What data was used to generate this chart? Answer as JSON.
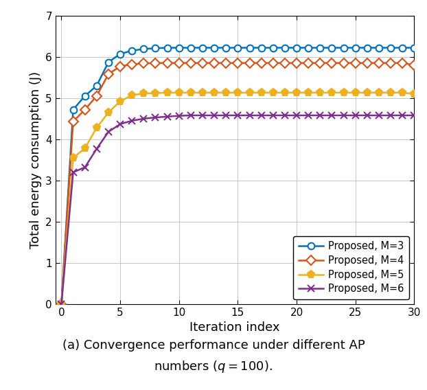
{
  "title": "(a) Convergence performance under different AP\nnumbers ($q = 100$).",
  "xlabel": "Iteration index",
  "ylabel": "Total energy consumption (J)",
  "xlim": [
    -0.5,
    30
  ],
  "ylim": [
    0,
    7
  ],
  "xticks": [
    0,
    5,
    10,
    15,
    20,
    25,
    30
  ],
  "yticks": [
    0,
    1,
    2,
    3,
    4,
    5,
    6,
    7
  ],
  "series": [
    {
      "label": "Proposed, M=3",
      "color": "#0072BD",
      "marker": "o",
      "markersize": 7,
      "linewidth": 1.8,
      "mfc": "white",
      "x": [
        0,
        1,
        2,
        3,
        4,
        5,
        6,
        7,
        8,
        9,
        10,
        11,
        12,
        13,
        14,
        15,
        16,
        17,
        18,
        19,
        20,
        21,
        22,
        23,
        24,
        25,
        26,
        27,
        28,
        29,
        30
      ],
      "y": [
        0.0,
        4.72,
        5.05,
        5.3,
        5.87,
        6.07,
        6.15,
        6.19,
        6.21,
        6.22,
        6.22,
        6.22,
        6.22,
        6.22,
        6.22,
        6.22,
        6.22,
        6.22,
        6.22,
        6.22,
        6.22,
        6.22,
        6.22,
        6.22,
        6.22,
        6.22,
        6.22,
        6.22,
        6.22,
        6.22,
        6.22
      ]
    },
    {
      "label": "Proposed, M=4",
      "color": "#D95319",
      "marker": "D",
      "markersize": 7,
      "linewidth": 1.8,
      "mfc": "white",
      "x": [
        0,
        1,
        2,
        3,
        4,
        5,
        6,
        7,
        8,
        9,
        10,
        11,
        12,
        13,
        14,
        15,
        16,
        17,
        18,
        19,
        20,
        21,
        22,
        23,
        24,
        25,
        26,
        27,
        28,
        29,
        30
      ],
      "y": [
        0.0,
        4.43,
        4.72,
        5.05,
        5.58,
        5.77,
        5.82,
        5.84,
        5.85,
        5.85,
        5.85,
        5.85,
        5.85,
        5.85,
        5.85,
        5.85,
        5.85,
        5.85,
        5.85,
        5.85,
        5.85,
        5.85,
        5.85,
        5.85,
        5.85,
        5.85,
        5.85,
        5.85,
        5.85,
        5.85,
        5.8
      ]
    },
    {
      "label": "Proposed, M=5",
      "color": "#EDB120",
      "marker": "p",
      "markersize": 8,
      "linewidth": 1.8,
      "mfc": "#EDB120",
      "x": [
        0,
        1,
        2,
        3,
        4,
        5,
        6,
        7,
        8,
        9,
        10,
        11,
        12,
        13,
        14,
        15,
        16,
        17,
        18,
        19,
        20,
        21,
        22,
        23,
        24,
        25,
        26,
        27,
        28,
        29,
        30
      ],
      "y": [
        0.0,
        3.55,
        3.78,
        4.28,
        4.65,
        4.92,
        5.07,
        5.11,
        5.12,
        5.13,
        5.13,
        5.13,
        5.13,
        5.13,
        5.13,
        5.13,
        5.13,
        5.13,
        5.13,
        5.13,
        5.13,
        5.13,
        5.13,
        5.13,
        5.13,
        5.13,
        5.13,
        5.13,
        5.13,
        5.13,
        5.1
      ]
    },
    {
      "label": "Proposed, M=6",
      "color": "#7E2F8E",
      "marker": "x",
      "markersize": 7,
      "linewidth": 1.8,
      "mfc": "#7E2F8E",
      "x": [
        0,
        1,
        2,
        3,
        4,
        5,
        6,
        7,
        8,
        9,
        10,
        11,
        12,
        13,
        14,
        15,
        16,
        17,
        18,
        19,
        20,
        21,
        22,
        23,
        24,
        25,
        26,
        27,
        28,
        29,
        30
      ],
      "y": [
        0.0,
        3.2,
        3.32,
        3.77,
        4.18,
        4.37,
        4.45,
        4.5,
        4.53,
        4.55,
        4.57,
        4.58,
        4.58,
        4.58,
        4.58,
        4.58,
        4.58,
        4.58,
        4.58,
        4.58,
        4.58,
        4.58,
        4.58,
        4.58,
        4.58,
        4.58,
        4.58,
        4.58,
        4.58,
        4.58,
        4.58
      ]
    }
  ],
  "legend_loc": "lower right",
  "legend_bbox": null,
  "grid": true,
  "background_color": "#ffffff"
}
